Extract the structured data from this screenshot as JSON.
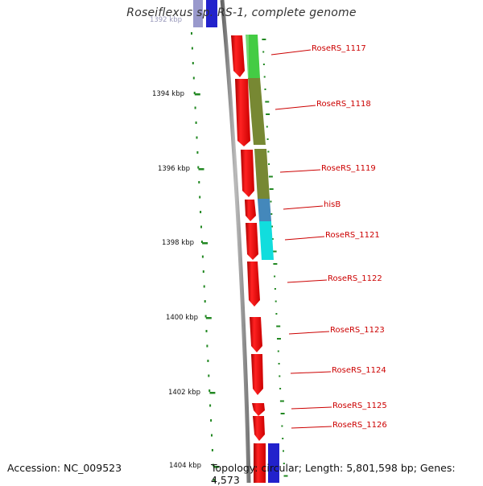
{
  "title": "Roseiflexus sp. RS-1, complete genome",
  "footer": {
    "accession": "Accession: NC_009523",
    "summary": "Topology: circular; Length: 5,801,598 bp; Genes: 4,573"
  },
  "ruler": {
    "labels": [
      "1392 kbp",
      "1394 kbp",
      "1396 kbp",
      "1398 kbp",
      "1400 kbp",
      "1402 kbp",
      "1404 kbp"
    ]
  },
  "genes": [
    {
      "name": "RoseRS_1117"
    },
    {
      "name": "RoseRS_1118"
    },
    {
      "name": "RoseRS_1119"
    },
    {
      "name": "hisB"
    },
    {
      "name": "RoseRS_1121"
    },
    {
      "name": "RoseRS_1122"
    },
    {
      "name": "RoseRS_1123"
    },
    {
      "name": "RoseRS_1124"
    },
    {
      "name": "RoseRS_1125"
    },
    {
      "name": "RoseRS_1126"
    }
  ],
  "colors": {
    "cds": "#ee1111",
    "cog_green": "#44cc44",
    "cog_olive": "#778833",
    "cog_steel": "#4488bb",
    "cog_cyan": "#11dddd",
    "cog_blue": "#2222cc",
    "backbone": "#888888",
    "tick": "#228822",
    "label": "#cc0000"
  }
}
